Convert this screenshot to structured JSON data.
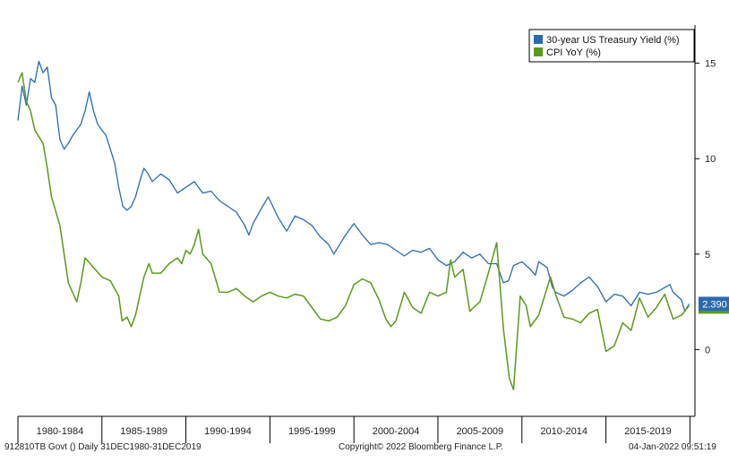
{
  "chart_data": {
    "type": "line",
    "ylim": [
      -3.5,
      17
    ],
    "yticks": [
      0,
      5,
      10,
      15
    ],
    "xlim": [
      1980.0,
      2020.3
    ],
    "grid": false,
    "legend_position": "top-right",
    "x_period_labels": [
      "1980-1984",
      "1985-1989",
      "1990-1994",
      "1995-1999",
      "2000-2004",
      "2005-2009",
      "2010-2014",
      "2015-2019"
    ],
    "last_value_label": "2.390",
    "series": [
      {
        "name": "30-year US Treasury Yield (%)",
        "color": "#2a6ab0",
        "x": [
          1980.0,
          1980.25,
          1980.5,
          1980.75,
          1981.0,
          1981.25,
          1981.5,
          1981.75,
          1982.0,
          1982.25,
          1982.5,
          1982.75,
          1983.0,
          1983.25,
          1983.5,
          1983.75,
          1984.0,
          1984.25,
          1984.5,
          1984.75,
          1985.0,
          1985.25,
          1985.5,
          1985.75,
          1986.0,
          1986.25,
          1986.5,
          1986.75,
          1987.0,
          1987.25,
          1987.5,
          1987.75,
          1988.0,
          1988.5,
          1989.0,
          1989.5,
          1990.0,
          1990.5,
          1991.0,
          1991.5,
          1992.0,
          1992.5,
          1993.0,
          1993.5,
          1993.75,
          1994.0,
          1994.5,
          1994.9,
          1995.5,
          1996.0,
          1996.5,
          1997.0,
          1997.5,
          1998.0,
          1998.5,
          1998.8,
          1999.5,
          2000.0,
          2000.5,
          2001.0,
          2001.5,
          2002.0,
          2002.5,
          2003.0,
          2003.5,
          2004.0,
          2004.5,
          2005.0,
          2005.5,
          2006.0,
          2006.5,
          2007.0,
          2007.5,
          2008.0,
          2008.5,
          2008.9,
          2009.2,
          2009.5,
          2010.0,
          2010.5,
          2010.8,
          2011.0,
          2011.5,
          2011.8,
          2012.0,
          2012.5,
          2013.0,
          2013.5,
          2014.0,
          2014.5,
          2015.0,
          2015.5,
          2016.0,
          2016.5,
          2017.0,
          2017.5,
          2018.0,
          2018.8,
          2019.0,
          2019.5,
          2019.7,
          2019.95
        ],
        "y": [
          12.0,
          13.8,
          12.8,
          14.2,
          14.0,
          15.1,
          14.5,
          14.8,
          13.2,
          12.8,
          11.0,
          10.5,
          10.8,
          11.2,
          11.5,
          11.8,
          12.5,
          13.5,
          12.5,
          11.8,
          11.5,
          11.2,
          10.5,
          9.8,
          8.5,
          7.5,
          7.3,
          7.5,
          8.0,
          8.8,
          9.5,
          9.2,
          8.8,
          9.2,
          8.9,
          8.2,
          8.5,
          8.8,
          8.2,
          8.3,
          7.8,
          7.5,
          7.2,
          6.5,
          6.0,
          6.6,
          7.4,
          8.0,
          6.9,
          6.2,
          7.0,
          6.8,
          6.5,
          5.9,
          5.5,
          5.0,
          6.0,
          6.6,
          6.0,
          5.5,
          5.6,
          5.5,
          5.2,
          4.9,
          5.2,
          5.1,
          5.3,
          4.7,
          4.4,
          4.6,
          5.1,
          4.8,
          5.0,
          4.5,
          4.5,
          3.5,
          3.6,
          4.4,
          4.6,
          4.2,
          3.9,
          4.6,
          4.3,
          3.3,
          3.0,
          2.8,
          3.1,
          3.5,
          3.8,
          3.3,
          2.5,
          2.9,
          2.8,
          2.3,
          3.0,
          2.9,
          3.0,
          3.4,
          3.0,
          2.6,
          2.0,
          2.39
        ]
      },
      {
        "name": "CPI YoY (%)",
        "color": "#5a9a1c",
        "x": [
          1980.0,
          1980.25,
          1980.5,
          1980.75,
          1981.0,
          1981.5,
          1981.75,
          1982.0,
          1982.5,
          1982.75,
          1983.0,
          1983.5,
          1983.75,
          1984.0,
          1984.5,
          1985.0,
          1985.5,
          1986.0,
          1986.2,
          1986.5,
          1986.75,
          1987.0,
          1987.5,
          1987.8,
          1988.0,
          1988.5,
          1989.0,
          1989.5,
          1989.75,
          1990.0,
          1990.25,
          1990.5,
          1990.75,
          1991.0,
          1991.5,
          1992.0,
          1992.5,
          1993.0,
          1993.5,
          1994.0,
          1994.5,
          1995.0,
          1995.5,
          1996.0,
          1996.5,
          1997.0,
          1997.5,
          1998.0,
          1998.5,
          1999.0,
          1999.5,
          2000.0,
          2000.5,
          2001.0,
          2001.5,
          2001.9,
          2002.2,
          2002.5,
          2003.0,
          2003.5,
          2004.0,
          2004.5,
          2005.0,
          2005.5,
          2005.75,
          2006.0,
          2006.5,
          2006.9,
          2007.0,
          2007.5,
          2008.0,
          2008.5,
          2008.9,
          2009.25,
          2009.5,
          2009.9,
          2010.25,
          2010.5,
          2011.0,
          2011.7,
          2012.0,
          2012.5,
          2013.0,
          2013.5,
          2014.0,
          2014.5,
          2015.0,
          2015.5,
          2016.0,
          2016.5,
          2017.0,
          2017.5,
          2018.0,
          2018.5,
          2019.0,
          2019.5,
          2019.95
        ],
        "y": [
          14.0,
          14.5,
          13.0,
          12.5,
          11.5,
          10.8,
          9.5,
          8.0,
          6.5,
          5.0,
          3.5,
          2.5,
          3.5,
          4.8,
          4.3,
          3.8,
          3.6,
          2.8,
          1.5,
          1.7,
          1.2,
          1.8,
          3.8,
          4.5,
          4.0,
          4.0,
          4.5,
          4.8,
          4.5,
          5.2,
          5.0,
          5.5,
          6.3,
          5.0,
          4.5,
          3.0,
          3.0,
          3.2,
          2.8,
          2.5,
          2.8,
          3.0,
          2.8,
          2.7,
          2.9,
          2.8,
          2.2,
          1.6,
          1.5,
          1.7,
          2.3,
          3.4,
          3.7,
          3.5,
          2.6,
          1.6,
          1.2,
          1.5,
          3.0,
          2.2,
          1.9,
          3.0,
          2.8,
          3.0,
          4.7,
          3.8,
          4.2,
          2.0,
          2.1,
          2.5,
          4.0,
          5.6,
          1.1,
          -1.5,
          -2.1,
          2.8,
          2.3,
          1.2,
          1.8,
          3.8,
          2.9,
          1.7,
          1.6,
          1.4,
          1.9,
          2.1,
          -0.1,
          0.2,
          1.4,
          1.0,
          2.7,
          1.7,
          2.2,
          2.9,
          1.6,
          1.8,
          2.3
        ]
      }
    ]
  },
  "footer": {
    "left": "912810TB Govt ()  Daily 31DEC1980-31DEC2019",
    "center": "Copyright© 2022 Bloomberg Finance L.P.",
    "right": "04-Jan-2022 09:51:19"
  }
}
